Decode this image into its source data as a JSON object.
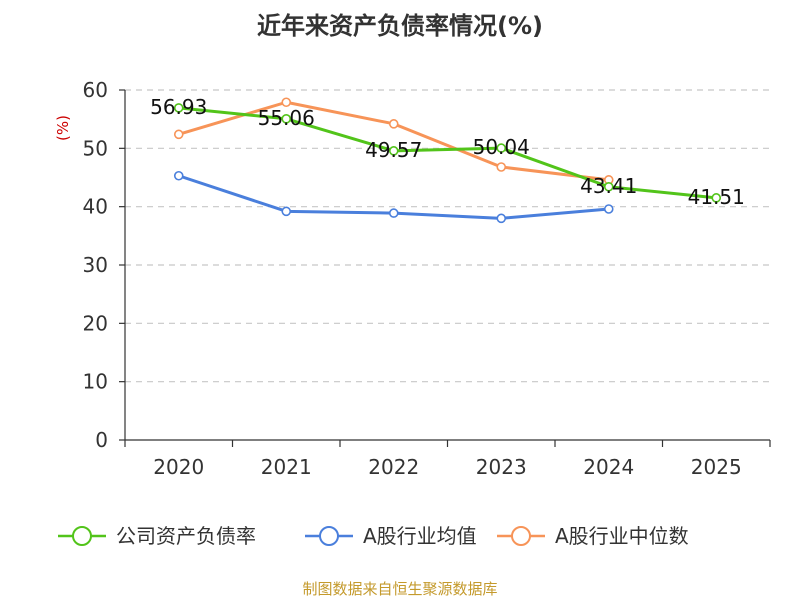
{
  "chart_data": {
    "type": "line",
    "title": "近年来资产负债率情况(%)",
    "ylabel": "(%)",
    "xlabel": "",
    "categories": [
      "2020",
      "2021",
      "2022",
      "2023",
      "2024",
      "2025"
    ],
    "ylim": [
      0,
      60
    ],
    "yticks": [
      0,
      10,
      20,
      30,
      40,
      50,
      60
    ],
    "grid": true,
    "legend_position": "bottom",
    "series": [
      {
        "name": "公司资产负债率",
        "color": "#52c41a",
        "values": [
          56.93,
          55.06,
          49.57,
          50.04,
          43.41,
          41.51
        ],
        "labels": [
          "56.93",
          "55.06",
          "49.57",
          "50.04",
          "43.41",
          "41.51"
        ]
      },
      {
        "name": "A股行业均值",
        "color": "#4a7fdc",
        "values": [
          45.3,
          39.2,
          38.9,
          38.0,
          39.6,
          null
        ]
      },
      {
        "name": "A股行业中位数",
        "color": "#f79458",
        "values": [
          52.4,
          57.9,
          54.2,
          46.8,
          44.6,
          null
        ]
      }
    ],
    "source": "制图数据来自恒生聚源数据库",
    "source_color": "#c49a2c",
    "ylabel_color": "#cc0000"
  }
}
